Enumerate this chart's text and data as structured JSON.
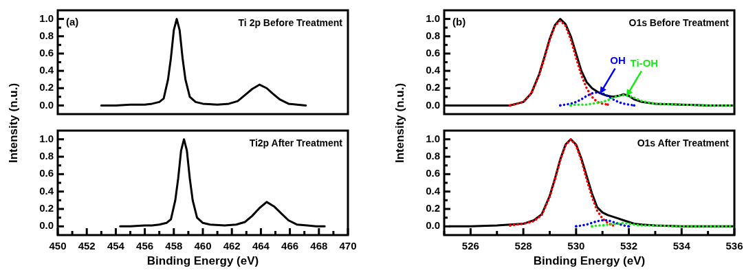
{
  "chart_data": [
    {
      "type": "line",
      "title": "Ti 2p Before Treatment",
      "ylabel": "Intensity (n.u.)",
      "annotations": [
        "(a)"
      ],
      "legend": false,
      "marker": "none",
      "tick_labels": "y",
      "xlim": [
        450,
        470
      ],
      "ylim": [
        -0.1,
        1.1
      ],
      "yticks": [
        {
          "value": 0,
          "label": "0.0"
        },
        {
          "value": 0.1,
          "label": null
        },
        0.2,
        {
          "value": 0.3,
          "label": null
        },
        0.4,
        {
          "value": 0.5,
          "label": null
        },
        0.6,
        {
          "value": 0.7,
          "label": null
        },
        0.8,
        {
          "value": 0.9,
          "label": null
        },
        {
          "value": 1,
          "label": "1.0"
        }
      ],
      "series": [
        {
          "color": "#000000",
          "line_style": "solid",
          "x": [
            453.0,
            454,
            455,
            456,
            456.5,
            457,
            457.3,
            457.6,
            457.8,
            458.0,
            458.2,
            458.4,
            458.6,
            458.8,
            459.1,
            459.5,
            460,
            461,
            461.8,
            462.4,
            462.9,
            463.4,
            463.9,
            464.4,
            464.8,
            465.3,
            465.9,
            466.5,
            467.1
          ],
          "values": [
            0,
            0,
            0.01,
            0.01,
            0.02,
            0.04,
            0.08,
            0.3,
            0.55,
            0.87,
            1.0,
            0.87,
            0.55,
            0.3,
            0.1,
            0.04,
            0.02,
            0.01,
            0.02,
            0.05,
            0.12,
            0.19,
            0.24,
            0.2,
            0.14,
            0.07,
            0.02,
            0.01,
            0
          ]
        }
      ]
    },
    {
      "type": "line",
      "title": "Ti2p After Treatment",
      "xlabel": "Binding Energy (eV)",
      "legend": false,
      "marker": "none",
      "xlim": [
        450,
        470
      ],
      "ylim": [
        -0.1,
        1.1
      ],
      "xticks": [
        450,
        {
          "value": 451,
          "label": null
        },
        452,
        {
          "value": 453,
          "label": null
        },
        454,
        {
          "value": 455,
          "label": null
        },
        456,
        {
          "value": 457,
          "label": null
        },
        458,
        {
          "value": 459,
          "label": null
        },
        460,
        {
          "value": 461,
          "label": null
        },
        462,
        {
          "value": 463,
          "label": null
        },
        464,
        {
          "value": 465,
          "label": null
        },
        466,
        {
          "value": 467,
          "label": null
        },
        468,
        {
          "value": 469,
          "label": null
        },
        470
      ],
      "yticks": [
        {
          "value": 0,
          "label": "0.0"
        },
        {
          "value": 0.1,
          "label": null
        },
        0.2,
        {
          "value": 0.3,
          "label": null
        },
        0.4,
        {
          "value": 0.5,
          "label": null
        },
        0.6,
        {
          "value": 0.7,
          "label": null
        },
        0.8,
        {
          "value": 0.9,
          "label": null
        },
        {
          "value": 1,
          "label": "1.0"
        }
      ],
      "series": [
        {
          "color": "#000000",
          "line_style": "solid",
          "x": [
            454.3,
            455,
            456,
            456.5,
            457,
            457.5,
            457.8,
            458.1,
            458.3,
            458.5,
            458.7,
            458.9,
            459.1,
            459.3,
            459.6,
            460,
            460.5,
            461.5,
            462.3,
            462.9,
            463.4,
            463.9,
            464.4,
            464.9,
            465.4,
            465.9,
            466.5,
            467.2,
            467.8,
            468.4
          ],
          "values": [
            0,
            0,
            0.01,
            0.01,
            0.02,
            0.04,
            0.08,
            0.3,
            0.55,
            0.87,
            1.0,
            0.87,
            0.55,
            0.3,
            0.1,
            0.04,
            0.02,
            0.01,
            0.02,
            0.05,
            0.12,
            0.21,
            0.28,
            0.23,
            0.15,
            0.07,
            0.02,
            0.01,
            0,
            0
          ]
        }
      ]
    },
    {
      "type": "line",
      "title": "O1s Before Treatment",
      "ylabel": "Intensity (n.u.)",
      "annotations": [
        "(b)"
      ],
      "legend": false,
      "marker": "none",
      "tick_labels": "y",
      "xlim": [
        525,
        536
      ],
      "ylim": [
        -0.1,
        1.1
      ],
      "yticks": [
        {
          "value": 0,
          "label": "0.0"
        },
        {
          "value": 0.1,
          "label": null
        },
        0.2,
        {
          "value": 0.3,
          "label": null
        },
        0.4,
        {
          "value": 0.5,
          "label": null
        },
        0.6,
        {
          "value": 0.7,
          "label": null
        },
        0.8,
        {
          "value": 0.9,
          "label": null
        },
        {
          "value": 1,
          "label": "1.0"
        }
      ],
      "x": [
        525.2,
        526,
        527,
        527.5,
        528,
        528.3,
        528.6,
        528.8,
        529.0,
        529.2,
        529.4,
        529.6,
        529.8,
        530.0,
        530.2,
        530.4,
        530.6,
        530.8,
        531.0,
        531.2,
        531.4,
        531.6,
        531.8,
        532.0,
        532.2,
        532.5,
        533,
        534,
        535,
        536
      ],
      "series": [
        {
          "color": "#000000",
          "line_style": "solid",
          "values": [
            0,
            0,
            0,
            0,
            0.04,
            0.14,
            0.36,
            0.56,
            0.77,
            0.93,
            1.0,
            0.94,
            0.8,
            0.6,
            0.4,
            0.27,
            0.2,
            0.16,
            0.13,
            0.11,
            0.1,
            0.11,
            0.13,
            0.11,
            0.07,
            0.04,
            0.02,
            0.01,
            0,
            0
          ]
        },
        {
          "color": "#ff0000",
          "line_style": "dotted",
          "x": [
            527.5,
            528,
            528.3,
            528.6,
            528.8,
            529.0,
            529.2,
            529.4,
            529.6,
            529.8,
            530.0,
            530.2,
            530.4,
            530.6,
            530.8,
            531.0,
            531.2
          ],
          "values": [
            0,
            0.04,
            0.14,
            0.35,
            0.55,
            0.76,
            0.92,
            0.98,
            0.92,
            0.76,
            0.55,
            0.35,
            0.2,
            0.1,
            0.04,
            0.02,
            0.01
          ]
        },
        {
          "name": "OH",
          "color": "#0000ff",
          "line_style": "dotted",
          "x": [
            529.4,
            529.6,
            529.8,
            530.0,
            530.2,
            530.4,
            530.6,
            530.8,
            531.0,
            531.2,
            531.4,
            531.6,
            531.8,
            532.0,
            532.2
          ],
          "values": [
            0,
            0.01,
            0.02,
            0.04,
            0.07,
            0.11,
            0.14,
            0.15,
            0.14,
            0.11,
            0.07,
            0.04,
            0.02,
            0.01,
            0
          ]
        },
        {
          "name": "Ti-OH",
          "color": "#11ee11",
          "line_style": "dotted",
          "x": [
            529.8,
            530.0,
            530.2,
            530.4,
            530.6,
            530.8,
            531.0,
            531.2,
            531.4,
            531.6,
            531.8,
            532.0,
            532.2,
            532.5,
            533,
            534,
            535,
            536
          ],
          "values": [
            0,
            0.01,
            0.01,
            0.01,
            0.02,
            0.03,
            0.04,
            0.06,
            0.09,
            0.11,
            0.12,
            0.11,
            0.09,
            0.05,
            0.02,
            0.01,
            0,
            0
          ]
        }
      ]
    },
    {
      "type": "line",
      "title": "O1s After Treatment",
      "xlabel": "Binding Energy (eV)",
      "legend": false,
      "marker": "none",
      "xlim": [
        525,
        536
      ],
      "ylim": [
        -0.1,
        1.1
      ],
      "xticks": [
        {
          "value": 525,
          "label": null
        },
        526,
        {
          "value": 527,
          "label": null
        },
        528,
        {
          "value": 529,
          "label": null
        },
        530,
        {
          "value": 531,
          "label": null
        },
        532,
        {
          "value": 533,
          "label": null
        },
        534,
        {
          "value": 535,
          "label": null
        },
        536
      ],
      "yticks": [
        {
          "value": 0,
          "label": "0.0"
        },
        {
          "value": 0.1,
          "label": null
        },
        0.2,
        {
          "value": 0.3,
          "label": null
        },
        0.4,
        {
          "value": 0.5,
          "label": null
        },
        0.6,
        {
          "value": 0.7,
          "label": null
        },
        0.8,
        {
          "value": 0.9,
          "label": null
        },
        {
          "value": 1,
          "label": "1.0"
        }
      ],
      "x": [
        525.2,
        526,
        527,
        527.5,
        528,
        528.4,
        528.7,
        529.0,
        529.2,
        529.4,
        529.6,
        529.8,
        530.0,
        530.2,
        530.4,
        530.6,
        530.8,
        531.0,
        531.2,
        531.4,
        531.6,
        531.8,
        532.0,
        532.2,
        532.5,
        533,
        534,
        535,
        536
      ],
      "series": [
        {
          "color": "#000000",
          "line_style": "solid",
          "values": [
            0,
            0,
            0.01,
            0.02,
            0.03,
            0.07,
            0.14,
            0.35,
            0.55,
            0.77,
            0.94,
            1.0,
            0.94,
            0.78,
            0.58,
            0.38,
            0.22,
            0.16,
            0.13,
            0.11,
            0.09,
            0.07,
            0.05,
            0.03,
            0.02,
            0.01,
            0,
            0,
            0
          ]
        },
        {
          "color": "#ff0000",
          "line_style": "dotted",
          "x": [
            527.5,
            528,
            528.4,
            528.7,
            529.0,
            529.2,
            529.4,
            529.6,
            529.8,
            530.0,
            530.2,
            530.4,
            530.6,
            530.8,
            531.0,
            531.2,
            531.4
          ],
          "values": [
            0.01,
            0.03,
            0.06,
            0.13,
            0.34,
            0.54,
            0.76,
            0.93,
            1.0,
            0.93,
            0.76,
            0.54,
            0.34,
            0.18,
            0.09,
            0.04,
            0.01
          ]
        },
        {
          "color": "#0000ff",
          "line_style": "dotted",
          "x": [
            530.0,
            530.2,
            530.4,
            530.6,
            530.8,
            531.0,
            531.2,
            531.4,
            531.6,
            531.8,
            532.0
          ],
          "values": [
            0,
            0.01,
            0.02,
            0.04,
            0.06,
            0.07,
            0.07,
            0.05,
            0.03,
            0.01,
            0
          ]
        },
        {
          "color": "#11ee11",
          "line_style": "dotted",
          "x": [
            530.6,
            530.8,
            531.0,
            531.2,
            531.4,
            531.6,
            531.8,
            532.0,
            532.2,
            532.5,
            533,
            534,
            535,
            536
          ],
          "values": [
            0,
            0.01,
            0.01,
            0.02,
            0.03,
            0.03,
            0.04,
            0.03,
            0.02,
            0.01,
            0.01,
            0,
            0,
            0
          ]
        }
      ]
    }
  ]
}
